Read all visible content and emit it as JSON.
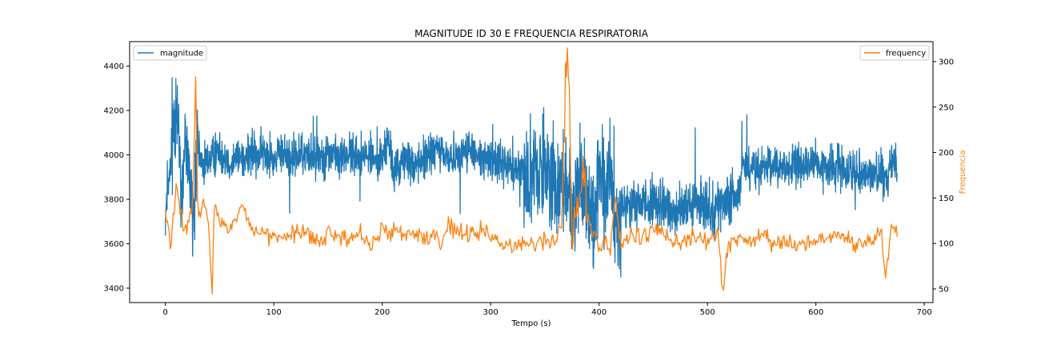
{
  "chart_data": {
    "type": "line",
    "title": "MAGNITUDE ID 30 E FREQUENCIA RESPIRATORIA",
    "xlabel": "Tempo (s)",
    "ylabel_left": "",
    "ylabel_right": "Frequencia",
    "xlim": [
      -33,
      708
    ],
    "ylim_left": [
      3335,
      4510
    ],
    "ylim_right": [
      35,
      322
    ],
    "x_ticks": [
      0,
      100,
      200,
      300,
      400,
      500,
      600,
      700
    ],
    "y_left_ticks": [
      3400,
      3600,
      3800,
      4000,
      4200,
      4400
    ],
    "y_right_ticks": [
      50,
      100,
      150,
      200,
      250,
      300
    ],
    "grid": false,
    "legend_left": {
      "placement": "upper-left",
      "label": "magnitude"
    },
    "legend_right": {
      "placement": "upper-right",
      "label": "frequency"
    },
    "series": [
      {
        "name": "magnitude",
        "axis": "left",
        "color": "#1f77b4",
        "x": [
          0,
          5,
          10,
          15,
          20,
          25,
          30,
          35,
          40,
          45,
          50,
          60,
          70,
          80,
          90,
          100,
          110,
          120,
          130,
          140,
          150,
          160,
          170,
          180,
          190,
          195,
          200,
          205,
          210,
          220,
          230,
          240,
          250,
          260,
          270,
          280,
          290,
          300,
          310,
          320,
          330,
          340,
          350,
          360,
          365,
          370,
          375,
          380,
          385,
          390,
          395,
          400,
          405,
          410,
          415,
          420,
          425,
          430,
          440,
          450,
          460,
          470,
          480,
          490,
          500,
          510,
          520,
          528,
          532,
          540,
          550,
          560,
          570,
          580,
          590,
          600,
          610,
          620,
          630,
          640,
          650,
          660,
          665,
          670,
          675
        ],
        "values": [
          3720,
          3960,
          4300,
          3850,
          4100,
          3700,
          4010,
          3950,
          3980,
          4000,
          4020,
          3970,
          3990,
          4000,
          4010,
          3980,
          4005,
          3990,
          4000,
          3995,
          4010,
          3985,
          4000,
          3990,
          4005,
          3960,
          3990,
          4080,
          3920,
          3980,
          3960,
          3990,
          4020,
          3990,
          4000,
          4030,
          3970,
          3990,
          3960,
          3950,
          3930,
          3910,
          3960,
          3870,
          3900,
          3880,
          3760,
          3850,
          3920,
          3800,
          3700,
          3880,
          3790,
          3920,
          3700,
          3780,
          3760,
          3770,
          3790,
          3780,
          3760,
          3760,
          3750,
          3780,
          3760,
          3770,
          3780,
          3820,
          3950,
          3940,
          3930,
          3950,
          3950,
          3940,
          3960,
          3950,
          3930,
          3950,
          3940,
          3930,
          3910,
          3920,
          3860,
          3980,
          3960
        ]
      },
      {
        "name": "frequency",
        "axis": "right",
        "color": "#ff7f0e",
        "x": [
          0,
          5,
          10,
          15,
          20,
          25,
          28,
          30,
          35,
          40,
          43,
          45,
          50,
          60,
          70,
          80,
          90,
          100,
          110,
          120,
          130,
          140,
          150,
          160,
          170,
          180,
          190,
          195,
          200,
          205,
          210,
          220,
          230,
          240,
          250,
          255,
          260,
          270,
          280,
          290,
          300,
          310,
          320,
          330,
          340,
          350,
          360,
          365,
          370,
          373,
          375,
          380,
          385,
          390,
          395,
          400,
          405,
          410,
          415,
          420,
          430,
          440,
          450,
          460,
          470,
          480,
          490,
          500,
          510,
          514,
          520,
          530,
          540,
          550,
          560,
          570,
          580,
          590,
          600,
          610,
          620,
          630,
          640,
          650,
          660,
          664,
          670,
          675
        ],
        "values": [
          135,
          100,
          160,
          125,
          115,
          140,
          280,
          120,
          150,
          115,
          45,
          140,
          125,
          110,
          145,
          115,
          110,
          105,
          108,
          110,
          112,
          100,
          110,
          108,
          105,
          112,
          95,
          110,
          115,
          108,
          118,
          108,
          112,
          105,
          110,
          92,
          120,
          112,
          110,
          115,
          105,
          100,
          95,
          102,
          98,
          105,
          100,
          120,
          310,
          250,
          100,
          130,
          200,
          130,
          110,
          95,
          105,
          90,
          150,
          100,
          110,
          105,
          115,
          110,
          100,
          105,
          110,
          100,
          110,
          50,
          100,
          108,
          102,
          110,
          100,
          105,
          100,
          98,
          105,
          100,
          110,
          105,
          100,
          103,
          115,
          60,
          120,
          110
        ]
      }
    ]
  }
}
